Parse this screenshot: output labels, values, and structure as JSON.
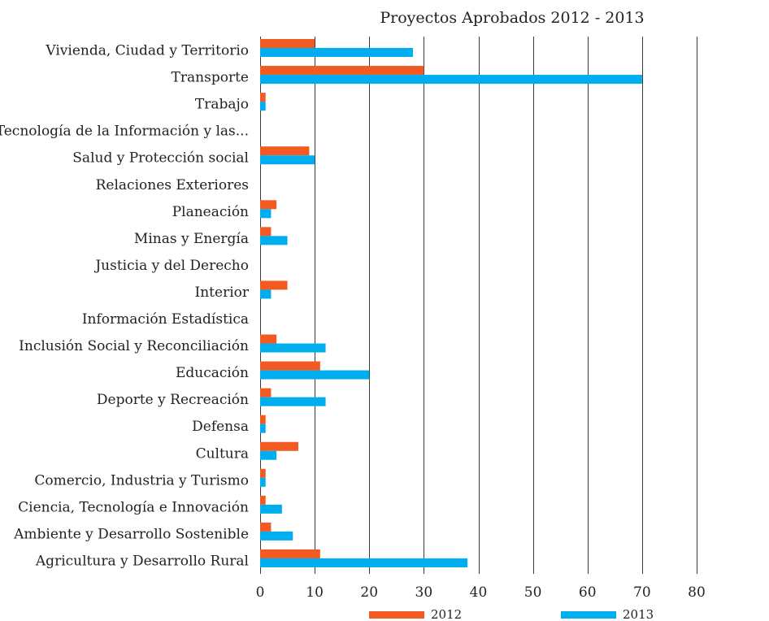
{
  "chart_data": {
    "type": "bar",
    "orientation": "horizontal",
    "title": "Proyectos Aprobados 2012 - 2013",
    "xlabel": "",
    "ylabel": "",
    "xlim": [
      0,
      80
    ],
    "ticks": [
      0,
      10,
      20,
      30,
      40,
      50,
      60,
      70,
      80
    ],
    "grid": true,
    "legend_position": "bottom",
    "categories": [
      "Vivienda, Ciudad y Territorio",
      "Transporte",
      "Trabajo",
      "Tecnología de la Información y las...",
      "Salud y Protección social",
      "Relaciones Exteriores",
      "Planeación",
      "Minas y Energía",
      "Justicia y del Derecho",
      "Interior",
      "Información Estadística",
      "Inclusión Social y Reconciliación",
      "Educación",
      "Deporte y Recreación",
      "Defensa",
      "Cultura",
      "Comercio, Industria y Turismo",
      "Ciencia, Tecnología e Innovación",
      "Ambiente y Desarrollo Sostenible",
      "Agricultura y Desarrollo Rural"
    ],
    "series": [
      {
        "name": "2012",
        "color": "#f25a22",
        "values": [
          10,
          30,
          1,
          0,
          9,
          0,
          3,
          2,
          0,
          5,
          0,
          3,
          11,
          2,
          1,
          7,
          1,
          1,
          2,
          11
        ]
      },
      {
        "name": "2013",
        "color": "#00aeef",
        "values": [
          28,
          70,
          1,
          0,
          10,
          0,
          2,
          5,
          0,
          2,
          0,
          12,
          20,
          12,
          1,
          3,
          1,
          4,
          6,
          38
        ]
      }
    ]
  }
}
